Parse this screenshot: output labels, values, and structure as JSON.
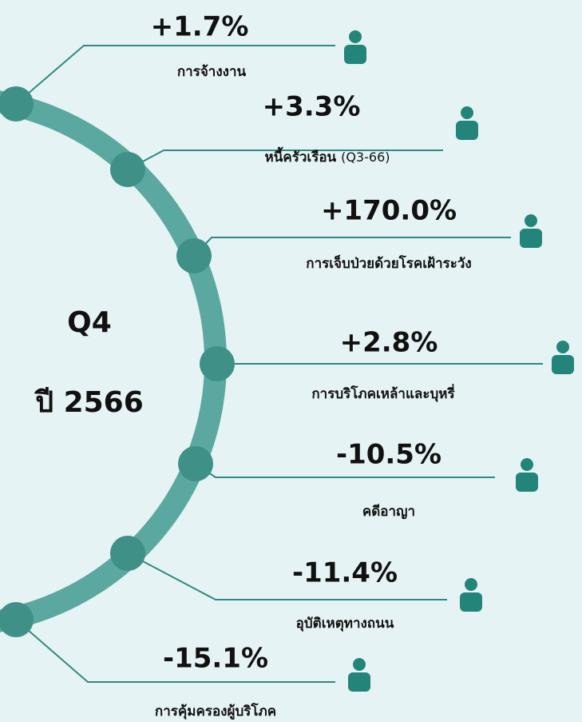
{
  "center": {
    "quarter": "Q4",
    "year": "ปี 2566"
  },
  "items": [
    {
      "value": "+1.7%",
      "label": "การจ้างงาน"
    },
    {
      "value": "+3.3%",
      "label": "หนี้ครัวเรือน",
      "note": "(Q3-66)"
    },
    {
      "value": "+170.0%",
      "label": "การเจ็บป่วยด้วยโรคเฝ้าระวัง"
    },
    {
      "value": "+2.8%",
      "label": "การบริโภคเหล้าและบุหรี่"
    },
    {
      "value": "-10.5%",
      "label": "คดีอาญา"
    },
    {
      "value": "-11.4%",
      "label": "อุบัติเหตุทางถนน"
    },
    {
      "value": "-15.1%",
      "label": "การคุ้มครองผู้บริโภค"
    }
  ]
}
